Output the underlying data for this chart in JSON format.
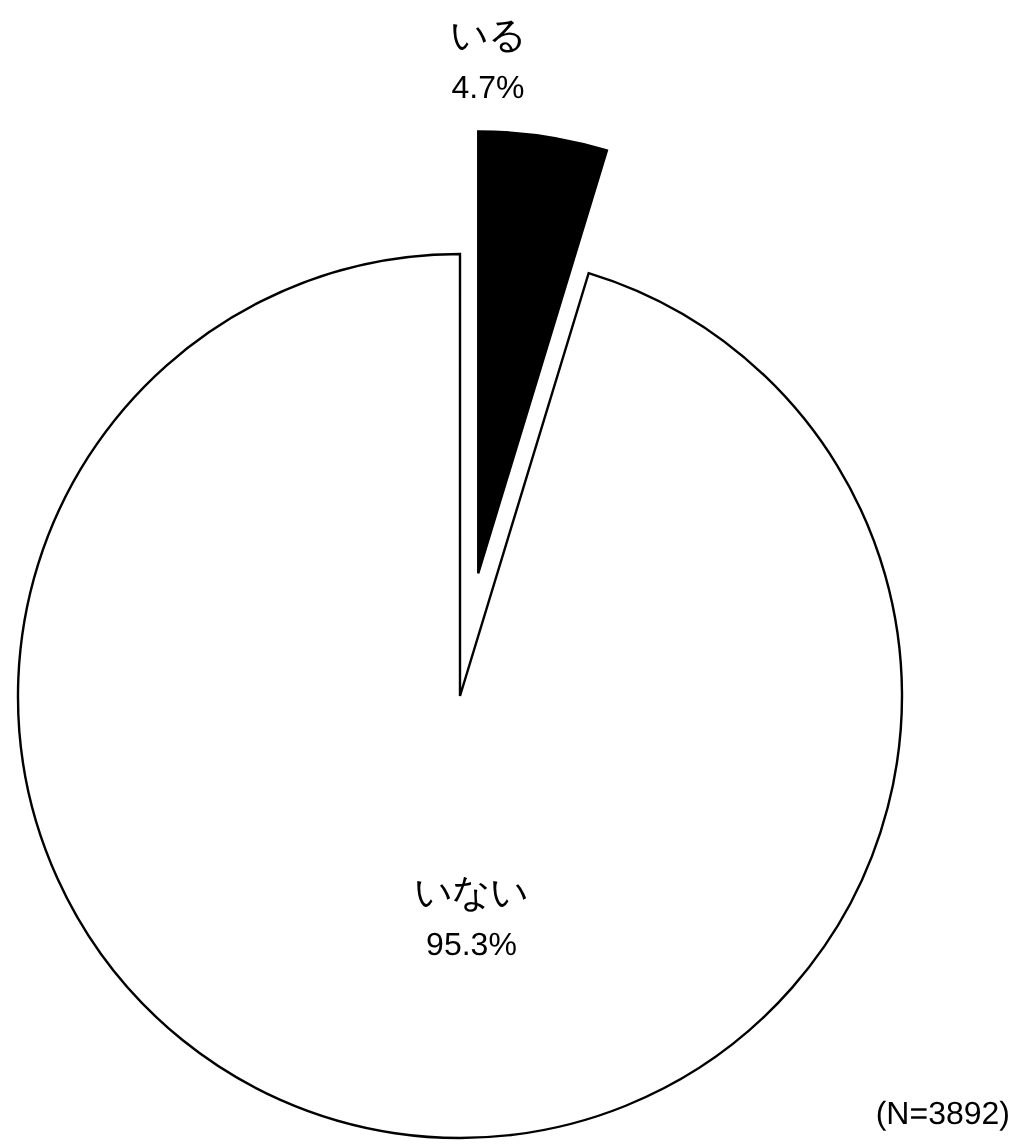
{
  "chart_data": {
    "type": "pie",
    "categories": [
      "いる",
      "いない"
    ],
    "values": [
      4.7,
      95.3
    ],
    "colors": [
      "#000000",
      "#ffffff"
    ],
    "value_labels": [
      "4.7%",
      "95.3%"
    ],
    "annotations": [
      "(N=3892)"
    ]
  }
}
